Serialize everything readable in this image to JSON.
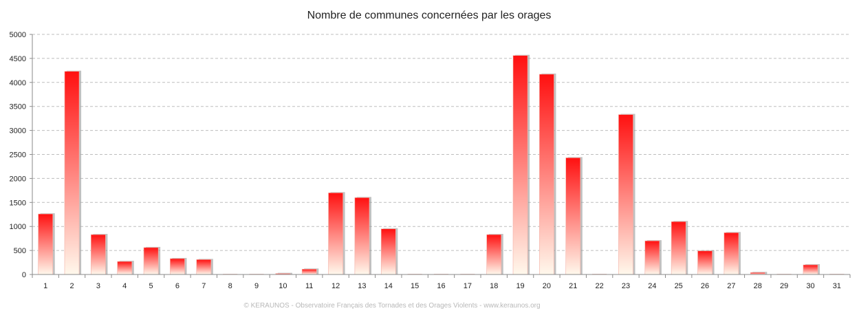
{
  "chart_data": {
    "type": "bar",
    "title": "Nombre de communes concernées par les orages",
    "xlabel": "",
    "ylabel": "",
    "categories": [
      "1",
      "2",
      "3",
      "4",
      "5",
      "6",
      "7",
      "8",
      "9",
      "10",
      "11",
      "12",
      "13",
      "14",
      "15",
      "16",
      "17",
      "18",
      "19",
      "20",
      "21",
      "22",
      "23",
      "24",
      "25",
      "26",
      "27",
      "28",
      "29",
      "30",
      "31"
    ],
    "values": [
      1260,
      4230,
      830,
      270,
      560,
      330,
      310,
      0,
      0,
      20,
      110,
      1700,
      1600,
      950,
      0,
      0,
      0,
      830,
      4560,
      4170,
      2430,
      0,
      3330,
      700,
      1100,
      490,
      870,
      40,
      0,
      200,
      0
    ],
    "ylim": [
      0,
      5000
    ],
    "yticks": [
      0,
      500,
      1000,
      1500,
      2000,
      2500,
      3000,
      3500,
      4000,
      4500,
      5000
    ],
    "grid": true,
    "legend": "none",
    "colors": {
      "bar_top": "#ff1010",
      "bar_bottom": "#fff8ec",
      "shadow": "#8c8c8c",
      "grid": "#bdbdbd"
    }
  },
  "footer": "© KERAUNOS - Observatoire Français des Tornades et des Orages Violents - www.keraunos.org"
}
